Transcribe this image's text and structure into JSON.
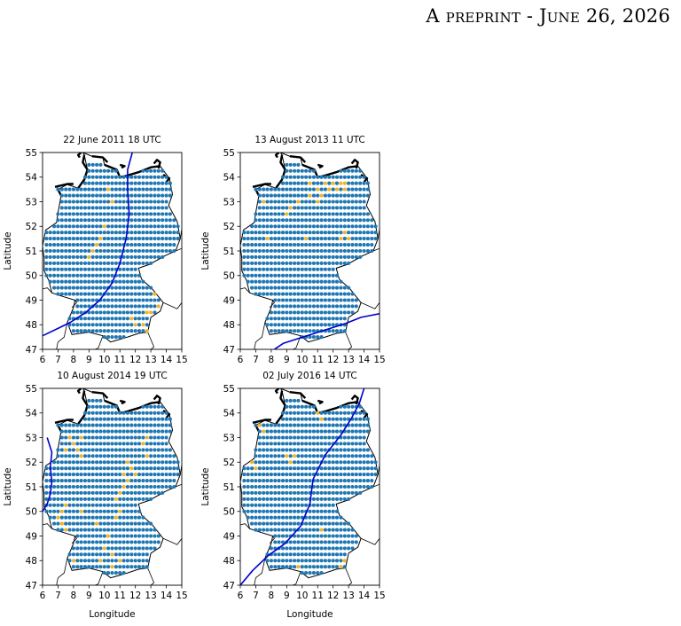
{
  "header": {
    "text": "A preprint - June 26, 2026"
  },
  "colors": {
    "dot_default": "#1f77b4",
    "dot_highlight": "#f0b62b",
    "front_line": "#0000cc",
    "border": "#000000"
  },
  "chart_data": [
    {
      "type": "scatter",
      "title": "22 June 2011 18 UTC",
      "xlabel": "",
      "ylabel": "Latitude",
      "xlim": [
        6,
        15
      ],
      "ylim": [
        47,
        55
      ],
      "xticks": [
        6,
        7,
        8,
        9,
        10,
        11,
        12,
        13,
        14,
        15
      ],
      "yticks": [
        47,
        48,
        49,
        50,
        51,
        52,
        53,
        54,
        55
      ],
      "series": [
        {
          "marker": "grid-dot",
          "color": "#1f77b4",
          "description_color": "blue"
        },
        {
          "marker": "grid-dot",
          "color": "#f0b62b",
          "points": [
            [
              10.25,
              53.5
            ],
            [
              10.5,
              53.0
            ],
            [
              10.0,
              52.0
            ],
            [
              9.75,
              51.5
            ],
            [
              9.5,
              51.25
            ],
            [
              9.25,
              51.0
            ],
            [
              9.0,
              50.75
            ],
            [
              13.25,
              49.25
            ],
            [
              13.5,
              48.75
            ],
            [
              12.75,
              48.5
            ],
            [
              13.0,
              48.5
            ],
            [
              11.75,
              48.25
            ],
            [
              12.0,
              48.0
            ],
            [
              12.5,
              48.0
            ],
            [
              12.75,
              47.75
            ]
          ]
        },
        {
          "type": "line",
          "color": "#0000cc",
          "x": [
            11.8,
            11.5,
            11.5,
            11.6,
            11.4,
            11.0,
            10.5,
            9.7,
            8.8,
            7.8,
            7.0,
            6.0
          ],
          "y": [
            55.0,
            54.3,
            53.5,
            52.5,
            51.5,
            50.5,
            49.7,
            49.0,
            48.5,
            48.1,
            47.85,
            47.55
          ]
        }
      ]
    },
    {
      "type": "scatter",
      "title": "13 August 2013 11 UTC",
      "xlabel": "",
      "ylabel": "Latitude",
      "xlim": [
        6,
        15
      ],
      "ylim": [
        47,
        55
      ],
      "xticks": [
        6,
        7,
        8,
        9,
        10,
        11,
        12,
        13,
        14,
        15
      ],
      "yticks": [
        47,
        48,
        49,
        50,
        51,
        52,
        53,
        54,
        55
      ],
      "series": [
        {
          "marker": "grid-dot",
          "color": "#1f77b4"
        },
        {
          "marker": "grid-dot",
          "color": "#f0b62b",
          "points": [
            [
              10.5,
              53.75
            ],
            [
              11.0,
              53.5
            ],
            [
              11.5,
              53.75
            ],
            [
              11.75,
              53.5
            ],
            [
              12.0,
              53.75
            ],
            [
              12.25,
              53.5
            ],
            [
              12.5,
              53.75
            ],
            [
              12.75,
              53.75
            ],
            [
              11.25,
              53.25
            ],
            [
              11.0,
              53.0
            ],
            [
              10.5,
              53.25
            ],
            [
              9.75,
              53.0
            ],
            [
              9.25,
              52.75
            ],
            [
              9.0,
              52.5
            ],
            [
              12.75,
              53.5
            ],
            [
              12.75,
              51.75
            ],
            [
              12.5,
              51.5
            ],
            [
              13.0,
              51.5
            ],
            [
              10.25,
              51.5
            ],
            [
              7.75,
              51.5
            ],
            [
              7.5,
              53.0
            ],
            [
              8.25,
              53.75
            ],
            [
              7.0,
              53.25
            ]
          ]
        },
        {
          "type": "line",
          "color": "#0000cc",
          "x": [
            8.2,
            8.8,
            9.8,
            10.8,
            11.8,
            12.8,
            13.8,
            15.0
          ],
          "y": [
            47.0,
            47.25,
            47.45,
            47.65,
            47.85,
            48.05,
            48.3,
            48.45
          ]
        }
      ]
    },
    {
      "type": "scatter",
      "title": "10 August 2014 19 UTC",
      "xlabel": "Longitude",
      "ylabel": "Latitude",
      "xlim": [
        6,
        15
      ],
      "ylim": [
        47,
        55
      ],
      "xticks": [
        6,
        7,
        8,
        9,
        10,
        11,
        12,
        13,
        14,
        15
      ],
      "yticks": [
        47,
        48,
        49,
        50,
        51,
        52,
        53,
        54,
        55
      ],
      "series": [
        {
          "marker": "grid-dot",
          "color": "#1f77b4"
        },
        {
          "marker": "grid-dot",
          "color": "#f0b62b",
          "points": [
            [
              9.75,
              54.75
            ],
            [
              10.0,
              54.5
            ],
            [
              7.75,
              53.0
            ],
            [
              8.0,
              52.75
            ],
            [
              8.25,
              52.5
            ],
            [
              8.5,
              52.25
            ],
            [
              7.5,
              52.5
            ],
            [
              8.5,
              53.0
            ],
            [
              12.75,
              53.0
            ],
            [
              12.5,
              52.75
            ],
            [
              12.75,
              52.25
            ],
            [
              11.5,
              52.0
            ],
            [
              11.75,
              51.75
            ],
            [
              12.0,
              51.5
            ],
            [
              11.5,
              51.25
            ],
            [
              11.25,
              51.0
            ],
            [
              11.0,
              50.75
            ],
            [
              10.75,
              50.5
            ],
            [
              7.5,
              50.25
            ],
            [
              7.25,
              50.0
            ],
            [
              7.0,
              49.75
            ],
            [
              7.25,
              49.5
            ],
            [
              7.5,
              49.25
            ],
            [
              8.5,
              50.0
            ],
            [
              9.5,
              49.5
            ],
            [
              10.25,
              49.0
            ],
            [
              10.0,
              48.5
            ],
            [
              10.5,
              48.25
            ],
            [
              9.75,
              48.0
            ],
            [
              10.5,
              47.75
            ],
            [
              11.0,
              48.0
            ],
            [
              8.0,
              48.0
            ],
            [
              10.75,
              49.75
            ],
            [
              11.0,
              50.0
            ],
            [
              11.25,
              51.5
            ]
          ]
        },
        {
          "type": "line",
          "color": "#0000cc",
          "x": [
            6.3,
            6.6,
            6.5,
            6.6,
            6.5,
            6.3,
            6.0
          ],
          "y": [
            53.0,
            52.4,
            51.8,
            51.2,
            50.7,
            50.3,
            50.0
          ]
        }
      ]
    },
    {
      "type": "scatter",
      "title": "02 July 2016 14 UTC",
      "xlabel": "Longitude",
      "ylabel": "Latitude",
      "xlim": [
        6,
        15
      ],
      "ylim": [
        47,
        55
      ],
      "xticks": [
        6,
        7,
        8,
        9,
        10,
        11,
        12,
        13,
        14,
        15
      ],
      "yticks": [
        47,
        48,
        49,
        50,
        51,
        52,
        53,
        54,
        55
      ],
      "series": [
        {
          "marker": "grid-dot",
          "color": "#1f77b4"
        },
        {
          "marker": "grid-dot",
          "color": "#f0b62b",
          "points": [
            [
              11.0,
              54.0
            ],
            [
              11.25,
              53.75
            ],
            [
              7.25,
              53.5
            ],
            [
              7.5,
              53.25
            ],
            [
              6.75,
              52.0
            ],
            [
              7.0,
              51.75
            ],
            [
              9.0,
              52.25
            ],
            [
              9.25,
              52.0
            ],
            [
              9.5,
              52.25
            ],
            [
              11.25,
              49.25
            ],
            [
              12.75,
              48.0
            ],
            [
              12.5,
              47.75
            ],
            [
              9.75,
              47.75
            ]
          ]
        },
        {
          "type": "line",
          "color": "#0000cc",
          "x": [
            6.0,
            6.8,
            7.8,
            8.9,
            9.9,
            10.5,
            10.7,
            11.5,
            12.5,
            13.2,
            13.7,
            14.0
          ],
          "y": [
            47.0,
            47.6,
            48.2,
            48.7,
            49.4,
            50.3,
            51.3,
            52.3,
            53.1,
            53.8,
            54.4,
            55.0
          ]
        }
      ]
    }
  ]
}
